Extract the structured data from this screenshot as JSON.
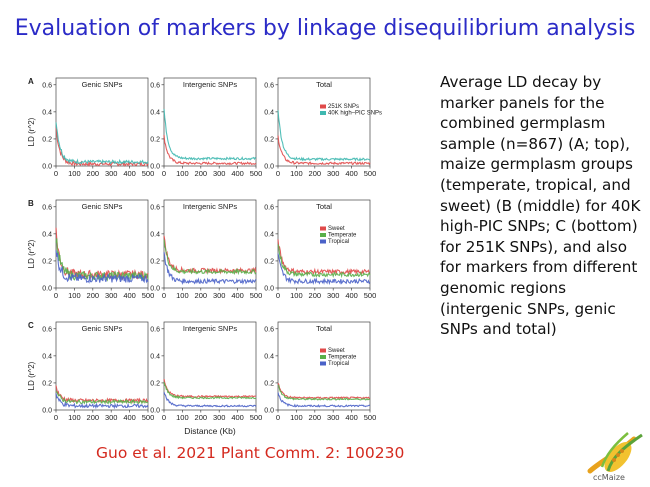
{
  "slide": {
    "title": "Evaluation of markers by linkage disequilibrium analysis",
    "description": "Average LD decay by marker panels for the combined germplasm sample (n=867) (A; top), maize germplasm groups (temperate, tropical, and sweet) (B (middle) for 40K high-PIC SNPs; C (bottom) for 251K SNPs), and also for markers from different genomic regions (intergenic SNPs, genic SNPs and total)",
    "citation": "Guo et al. 2021 Plant Comm. 2: 100230",
    "logo_text": "ccMaize"
  },
  "colors": {
    "title": "#2b2bc7",
    "citation": "#d42a1f",
    "red": "#e04a4a",
    "teal": "#3fb8b0",
    "green": "#59b04a",
    "blue": "#4a62c8"
  },
  "figure": {
    "ylabel": "LD (r^2)",
    "xlabel": "Distance (Kb)",
    "x_ticks": [
      "0",
      "100",
      "200",
      "300",
      "400",
      "500"
    ],
    "y_ticks": [
      "0.0",
      "0.2",
      "0.4",
      "0.6"
    ]
  },
  "chart_data": [
    {
      "type": "line",
      "panel": "A",
      "title": "Genic  SNPs",
      "xlim": [
        0,
        500
      ],
      "ylim": [
        0,
        0.65
      ],
      "series": [
        {
          "name": "251K SNPs",
          "color": "#e04a4a",
          "start": 0.28,
          "plateau": 0.015,
          "noise": 0.012
        },
        {
          "name": "40K high-PIC SNPs",
          "color": "#3fb8b0",
          "start": 0.34,
          "plateau": 0.03,
          "noise": 0.012
        }
      ]
    },
    {
      "type": "line",
      "panel": "A",
      "title": "Intergenic  SNPs",
      "xlim": [
        0,
        500
      ],
      "ylim": [
        0,
        0.65
      ],
      "series": [
        {
          "name": "251K SNPs",
          "color": "#e04a4a",
          "start": 0.22,
          "plateau": 0.02,
          "noise": 0.008
        },
        {
          "name": "40K high-PIC SNPs",
          "color": "#3fb8b0",
          "start": 0.42,
          "plateau": 0.055,
          "noise": 0.008
        }
      ]
    },
    {
      "type": "line",
      "panel": "A",
      "title": "Total",
      "xlim": [
        0,
        500
      ],
      "ylim": [
        0,
        0.65
      ],
      "legend": [
        "251K SNPs",
        "40K high–PIC SNPs"
      ],
      "series": [
        {
          "name": "251K SNPs",
          "color": "#e04a4a",
          "start": 0.22,
          "plateau": 0.02,
          "noise": 0.008
        },
        {
          "name": "40K high-PIC SNPs",
          "color": "#3fb8b0",
          "start": 0.42,
          "plateau": 0.05,
          "noise": 0.008
        }
      ]
    },
    {
      "type": "line",
      "panel": "B",
      "title": "Genic SNPs",
      "xlim": [
        0,
        500
      ],
      "ylim": [
        0,
        0.65
      ],
      "series": [
        {
          "name": "Sweet",
          "color": "#e04a4a",
          "start": 0.42,
          "plateau": 0.1,
          "noise": 0.03
        },
        {
          "name": "Temperate",
          "color": "#59b04a",
          "start": 0.38,
          "plateau": 0.09,
          "noise": 0.03
        },
        {
          "name": "Tropical",
          "color": "#4a62c8",
          "start": 0.3,
          "plateau": 0.07,
          "noise": 0.03
        }
      ]
    },
    {
      "type": "line",
      "panel": "B",
      "title": "Intergenic SNPs",
      "xlim": [
        0,
        500
      ],
      "ylim": [
        0,
        0.65
      ],
      "series": [
        {
          "name": "Sweet",
          "color": "#e04a4a",
          "start": 0.38,
          "plateau": 0.13,
          "noise": 0.015
        },
        {
          "name": "Temperate",
          "color": "#59b04a",
          "start": 0.36,
          "plateau": 0.12,
          "noise": 0.015
        },
        {
          "name": "Tropical",
          "color": "#4a62c8",
          "start": 0.26,
          "plateau": 0.05,
          "noise": 0.015
        }
      ]
    },
    {
      "type": "line",
      "panel": "B",
      "title": "Total",
      "xlim": [
        0,
        500
      ],
      "ylim": [
        0,
        0.65
      ],
      "legend": [
        "Sweet",
        "Temperate",
        "Tropical"
      ],
      "series": [
        {
          "name": "Sweet",
          "color": "#e04a4a",
          "start": 0.36,
          "plateau": 0.12,
          "noise": 0.015
        },
        {
          "name": "Temperate",
          "color": "#59b04a",
          "start": 0.33,
          "plateau": 0.1,
          "noise": 0.015
        },
        {
          "name": "Tropical",
          "color": "#4a62c8",
          "start": 0.25,
          "plateau": 0.05,
          "noise": 0.015
        }
      ]
    },
    {
      "type": "line",
      "panel": "C",
      "title": "Genic  SNPs",
      "xlim": [
        0,
        500
      ],
      "ylim": [
        0,
        0.65
      ],
      "series": [
        {
          "name": "Sweet",
          "color": "#e04a4a",
          "start": 0.17,
          "plateau": 0.07,
          "noise": 0.012
        },
        {
          "name": "Temperate",
          "color": "#59b04a",
          "start": 0.15,
          "plateau": 0.06,
          "noise": 0.012
        },
        {
          "name": "Tropical",
          "color": "#4a62c8",
          "start": 0.12,
          "plateau": 0.03,
          "noise": 0.012
        }
      ]
    },
    {
      "type": "line",
      "panel": "C",
      "title": "Intergenic   SNPs",
      "xlim": [
        0,
        500
      ],
      "ylim": [
        0,
        0.65
      ],
      "series": [
        {
          "name": "Sweet",
          "color": "#e04a4a",
          "start": 0.22,
          "plateau": 0.1,
          "noise": 0.006
        },
        {
          "name": "Temperate",
          "color": "#59b04a",
          "start": 0.21,
          "plateau": 0.09,
          "noise": 0.006
        },
        {
          "name": "Tropical",
          "color": "#4a62c8",
          "start": 0.14,
          "plateau": 0.03,
          "noise": 0.006
        }
      ]
    },
    {
      "type": "line",
      "panel": "C",
      "title": "Total",
      "xlim": [
        0,
        500
      ],
      "ylim": [
        0,
        0.65
      ],
      "legend": [
        "Sweet",
        "Temperate",
        "Tropical"
      ],
      "series": [
        {
          "name": "Sweet",
          "color": "#e04a4a",
          "start": 0.2,
          "plateau": 0.09,
          "noise": 0.006
        },
        {
          "name": "Temperate",
          "color": "#59b04a",
          "start": 0.19,
          "plateau": 0.08,
          "noise": 0.006
        },
        {
          "name": "Tropical",
          "color": "#4a62c8",
          "start": 0.13,
          "plateau": 0.03,
          "noise": 0.006
        }
      ]
    }
  ]
}
